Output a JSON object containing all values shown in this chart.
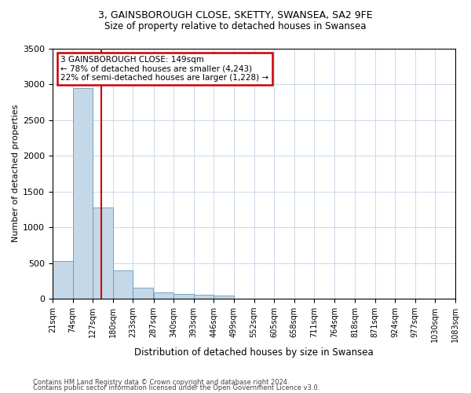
{
  "title_line1": "3, GAINSBOROUGH CLOSE, SKETTY, SWANSEA, SA2 9FE",
  "title_line2": "Size of property relative to detached houses in Swansea",
  "xlabel": "Distribution of detached houses by size in Swansea",
  "ylabel": "Number of detached properties",
  "footnote1": "Contains HM Land Registry data © Crown copyright and database right 2024.",
  "footnote2": "Contains public sector information licensed under the Open Government Licence v3.0.",
  "annotation_title": "3 GAINSBOROUGH CLOSE: 149sqm",
  "annotation_line1": "← 78% of detached houses are smaller (4,243)",
  "annotation_line2": "22% of semi-detached houses are larger (1,228) →",
  "property_size": 149,
  "bar_color": "#c5d8e8",
  "bar_edge_color": "#6699bb",
  "vline_color": "#cc0000",
  "annotation_box_color": "#cc0000",
  "background_color": "#ffffff",
  "grid_color": "#ccd8e8",
  "bins": [
    21,
    74,
    127,
    180,
    233,
    287,
    340,
    393,
    446,
    499,
    552,
    605,
    658,
    711,
    764,
    818,
    871,
    924,
    977,
    1030,
    1083
  ],
  "bin_labels": [
    "21sqm",
    "74sqm",
    "127sqm",
    "180sqm",
    "233sqm",
    "287sqm",
    "340sqm",
    "393sqm",
    "446sqm",
    "499sqm",
    "552sqm",
    "605sqm",
    "658sqm",
    "711sqm",
    "764sqm",
    "818sqm",
    "871sqm",
    "924sqm",
    "977sqm",
    "1030sqm",
    "1083sqm"
  ],
  "counts": [
    530,
    2950,
    1280,
    400,
    160,
    90,
    65,
    55,
    40,
    0,
    0,
    0,
    0,
    0,
    0,
    0,
    0,
    0,
    0,
    0
  ],
  "ylim": [
    0,
    3500
  ],
  "yticks": [
    0,
    500,
    1000,
    1500,
    2000,
    2500,
    3000,
    3500
  ],
  "title1_fontsize": 9,
  "title2_fontsize": 8.5,
  "ylabel_fontsize": 8,
  "xlabel_fontsize": 8.5,
  "tick_fontsize": 7,
  "footnote_fontsize": 6,
  "annot_fontsize": 7.5
}
